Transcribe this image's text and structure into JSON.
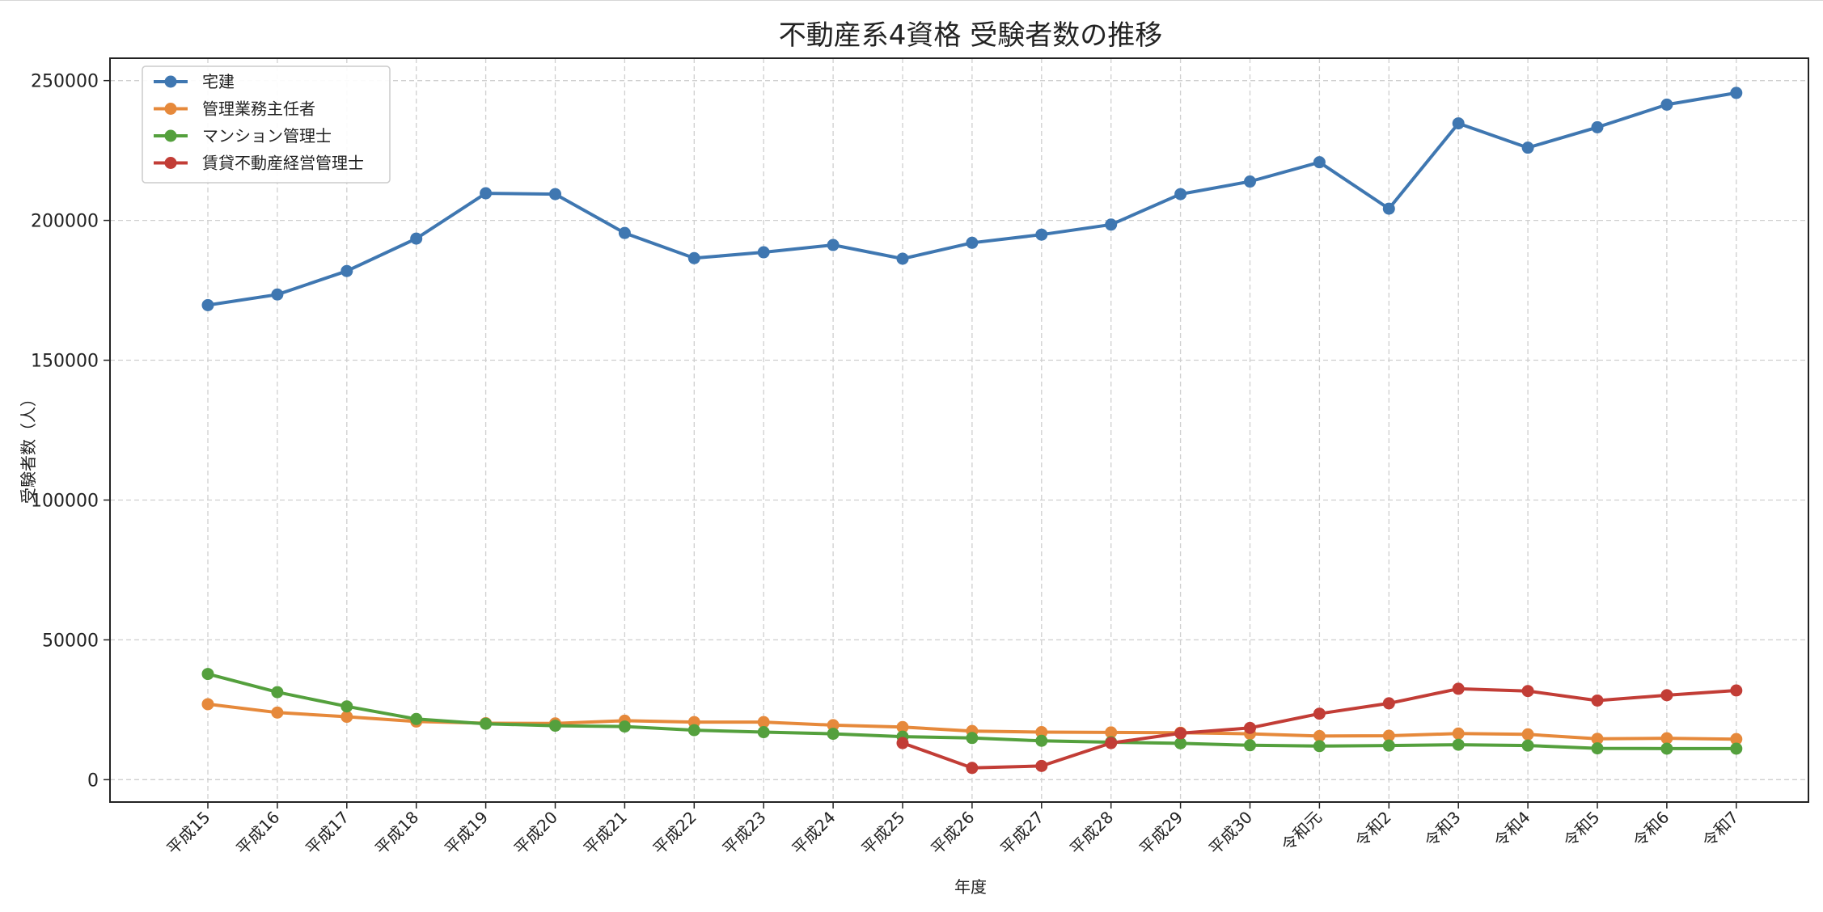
{
  "colors": {
    "takken": "#3f77b1",
    "kanri": "#e6893b",
    "mansion": "#54a03d",
    "chintai": "#c23d36",
    "grid": "#cfcfcf",
    "axis": "#222222"
  },
  "chart_data": {
    "type": "line",
    "title": "不動産系4資格 受験者数の推移",
    "xlabel": "年度",
    "ylabel": "受験者数（人）",
    "ylim": [
      -8000,
      258000
    ],
    "yticks": [
      0,
      50000,
      100000,
      150000,
      200000,
      250000
    ],
    "ytick_labels": [
      "0",
      "50000",
      "100000",
      "150000",
      "200000",
      "250000"
    ],
    "grid": true,
    "legend_position": "top-left",
    "categories": [
      "平成15",
      "平成16",
      "平成17",
      "平成18",
      "平成19",
      "平成20",
      "平成21",
      "平成22",
      "平成23",
      "平成24",
      "平成25",
      "平成26",
      "平成27",
      "平成28",
      "平成29",
      "平成30",
      "令和元",
      "令和2",
      "令和3",
      "令和4",
      "令和5",
      "令和6",
      "令和7"
    ],
    "series": [
      {
        "name": "宅建",
        "color_key": "takken",
        "values": [
          169700,
          173500,
          181900,
          193500,
          209700,
          209400,
          195500,
          186500,
          188600,
          191200,
          186300,
          192000,
          194900,
          198500,
          209400,
          213900,
          220800,
          204200,
          234700,
          226000,
          233300,
          241400,
          245600
        ]
      },
      {
        "name": "管理業務主任者",
        "color_key": "kanri",
        "values": [
          27000,
          24000,
          22500,
          20800,
          20200,
          20100,
          21100,
          20600,
          20600,
          19500,
          18800,
          17400,
          17000,
          16900,
          16800,
          16400,
          15600,
          15700,
          16500,
          16200,
          14600,
          14800,
          14500
        ]
      },
      {
        "name": "マンション管理士",
        "color_key": "mansion",
        "values": [
          37800,
          31300,
          26200,
          21700,
          20000,
          19300,
          19000,
          17700,
          17000,
          16400,
          15400,
          14900,
          13900,
          13400,
          13000,
          12300,
          12000,
          12200,
          12500,
          12200,
          11200,
          11100,
          11100
        ]
      },
      {
        "name": "賃貸不動産経営管理士",
        "color_key": "chintai",
        "values": [
          null,
          null,
          null,
          null,
          null,
          null,
          null,
          null,
          null,
          null,
          13100,
          4200,
          4900,
          13100,
          16600,
          18500,
          23600,
          27300,
          32500,
          31700,
          28300,
          30200,
          31900
        ]
      }
    ]
  }
}
